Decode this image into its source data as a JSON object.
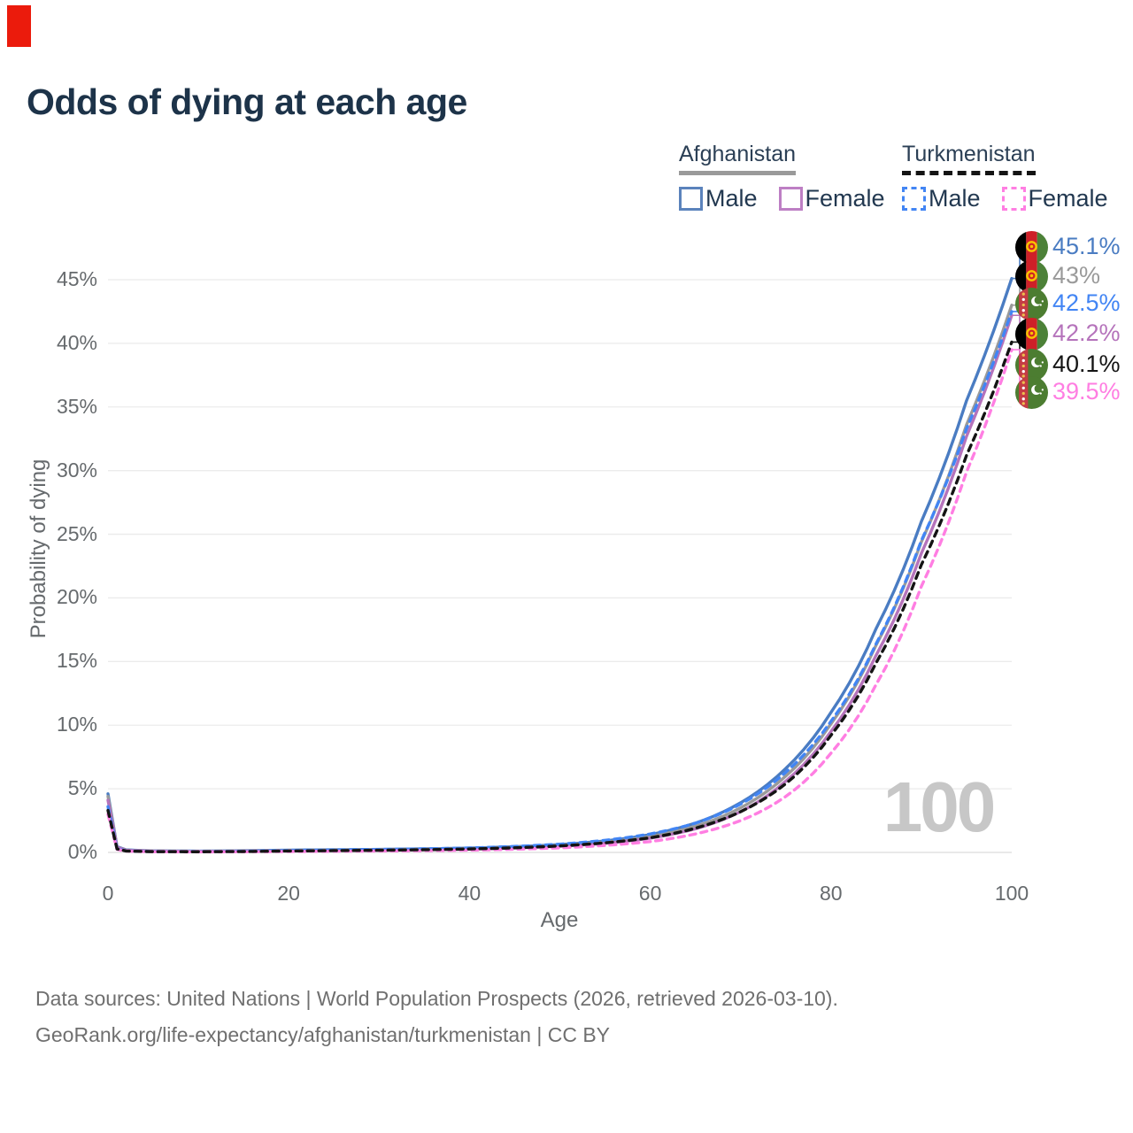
{
  "page_title": "Odds of dying at each age",
  "red_marker": {
    "visible": true,
    "color": "#eb1b0c"
  },
  "legend": {
    "groups": [
      {
        "label": "Afghanistan",
        "line_style": "solid",
        "underline_color": "#9a9a9a",
        "items": [
          {
            "label": "Male",
            "color": "#4a7cc2"
          },
          {
            "label": "Female",
            "color": "#bd7fc4"
          }
        ]
      },
      {
        "label": "Turkmenistan",
        "line_style": "dashed",
        "underline_color": "#141414",
        "items": [
          {
            "label": "Male",
            "color": "#4285f4"
          },
          {
            "label": "Female",
            "color": "#ff7ee2"
          }
        ]
      }
    ]
  },
  "chart_data": {
    "type": "line",
    "title": "Odds of dying at each age",
    "xlabel": "Age",
    "ylabel": "Probability of dying",
    "xlim": [
      0,
      100
    ],
    "ylim": [
      0,
      45
    ],
    "xticks": [
      0,
      20,
      40,
      60,
      80,
      100
    ],
    "yticks": [
      0,
      5,
      10,
      15,
      20,
      25,
      30,
      35,
      40,
      45
    ],
    "ytick_suffix": "%",
    "grid": "horizontal",
    "legend_position": "top-right",
    "watermark": "100",
    "x": [
      0,
      1,
      2,
      5,
      10,
      15,
      20,
      25,
      30,
      35,
      40,
      45,
      50,
      55,
      60,
      65,
      70,
      75,
      80,
      85,
      90,
      95,
      100
    ],
    "series": [
      {
        "name": "Afghanistan Male",
        "country": "Afghanistan",
        "sex": "Male",
        "color": "#4a7cc2",
        "dashed": false,
        "end_label": "45.1%",
        "flag": "af",
        "values": [
          4.6,
          0.45,
          0.2,
          0.12,
          0.1,
          0.13,
          0.18,
          0.21,
          0.24,
          0.28,
          0.34,
          0.45,
          0.62,
          0.9,
          1.4,
          2.3,
          3.9,
          6.6,
          11.0,
          17.6,
          26.0,
          35.5,
          45.1
        ]
      },
      {
        "name": "Afghanistan Both sexes",
        "country": "Afghanistan",
        "sex": "Both",
        "color": "#9a9a9a",
        "dashed": false,
        "end_label": "43%",
        "flag": "af",
        "values": [
          4.4,
          0.42,
          0.18,
          0.11,
          0.09,
          0.11,
          0.15,
          0.18,
          0.21,
          0.24,
          0.3,
          0.4,
          0.55,
          0.8,
          1.25,
          2.05,
          3.5,
          6.0,
          10.1,
          16.3,
          24.4,
          33.6,
          43.0
        ]
      },
      {
        "name": "Afghanistan Female",
        "country": "Afghanistan",
        "sex": "Female",
        "color": "#b573bb",
        "dashed": false,
        "end_label": "42.2%",
        "flag": "af",
        "values": [
          4.1,
          0.4,
          0.17,
          0.1,
          0.08,
          0.1,
          0.13,
          0.15,
          0.18,
          0.21,
          0.26,
          0.35,
          0.49,
          0.72,
          1.12,
          1.85,
          3.2,
          5.6,
          9.5,
          15.5,
          23.5,
          32.7,
          42.2
        ]
      },
      {
        "name": "Turkmenistan Male",
        "country": "Turkmenistan",
        "sex": "Male",
        "color": "#4285f4",
        "dashed": true,
        "end_label": "42.5%",
        "flag": "tm",
        "values": [
          3.6,
          0.3,
          0.12,
          0.07,
          0.06,
          0.09,
          0.15,
          0.19,
          0.23,
          0.28,
          0.35,
          0.47,
          0.65,
          0.95,
          1.45,
          2.3,
          3.8,
          6.3,
          10.3,
          16.4,
          24.5,
          33.3,
          42.5
        ]
      },
      {
        "name": "Turkmenistan Both sexes",
        "country": "Turkmenistan",
        "sex": "Both",
        "color": "#141414",
        "dashed": true,
        "end_label": "40.1%",
        "flag": "tm",
        "values": [
          3.3,
          0.27,
          0.11,
          0.06,
          0.05,
          0.07,
          0.11,
          0.14,
          0.17,
          0.21,
          0.27,
          0.36,
          0.51,
          0.75,
          1.15,
          1.9,
          3.2,
          5.4,
          9.2,
          14.9,
          22.6,
          31.2,
          40.1
        ]
      },
      {
        "name": "Turkmenistan Female",
        "country": "Turkmenistan",
        "sex": "Female",
        "color": "#ff7ee2",
        "dashed": true,
        "end_label": "39.5%",
        "flag": "tm",
        "values": [
          3.0,
          0.24,
          0.1,
          0.05,
          0.04,
          0.05,
          0.07,
          0.09,
          0.11,
          0.14,
          0.18,
          0.25,
          0.36,
          0.55,
          0.85,
          1.45,
          2.5,
          4.4,
          7.8,
          13.2,
          20.9,
          29.9,
          39.5
        ]
      }
    ]
  },
  "footer": {
    "line1": "Data sources: United Nations | World Population Prospects (2026, retrieved 2026-03-10).",
    "line2": "GeoRank.org/life-expectancy/afghanistan/turkmenistan | CC BY"
  }
}
